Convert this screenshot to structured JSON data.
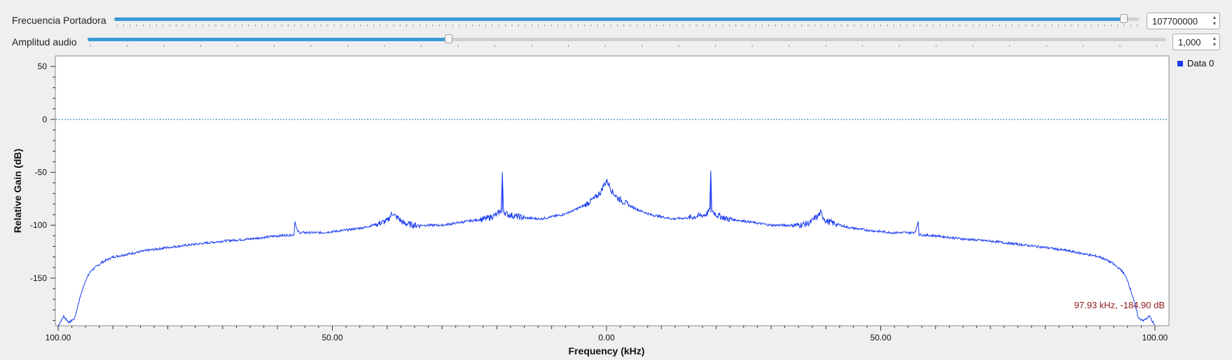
{
  "controls": {
    "carrier": {
      "label": "Frecuencia Portadora",
      "value": "107700000",
      "fraction": 0.985
    },
    "audio": {
      "label": "Amplitud audio",
      "value": "1,000",
      "fraction": 0.335
    }
  },
  "colors": {
    "trace": "#1a3cf0",
    "slider": "#3c9ad6",
    "reference_line": "#0a7fa0",
    "marker_text": "#8b1a1a"
  },
  "chart_data": {
    "type": "line",
    "xlabel": "Frequency (kHz)",
    "ylabel": "Relative Gain (dB)",
    "xlim": [
      -100,
      100
    ],
    "ylim": [
      -195,
      60
    ],
    "x_tick_values": [
      -100,
      -50,
      0,
      50,
      100
    ],
    "x_tick_labels": [
      "100.00",
      "50.00",
      "0.00",
      "50.00",
      "100.00"
    ],
    "y_ticks": [
      50,
      0,
      -50,
      -100,
      -150
    ],
    "reference_line_y": 0,
    "legend": [
      "Data 0"
    ],
    "legend_placement": "top-right",
    "marker_readout": "97.93 kHz, -184.90 dB",
    "series": [
      {
        "name": "Data 0",
        "x": [
          -100,
          -99,
          -98,
          -97,
          -96,
          -95,
          -94,
          -92,
          -90,
          -87,
          -84,
          -80,
          -75,
          -70,
          -65,
          -60,
          -57,
          -56.8,
          -56.6,
          -56.4,
          -56,
          -52,
          -48,
          -44,
          -42,
          -40,
          -39,
          -38.5,
          -38,
          -37.5,
          -37,
          -35,
          -30,
          -25,
          -22,
          -20,
          -19.2,
          -19,
          -18.8,
          -18.5,
          -18,
          -15,
          -12,
          -8,
          -6,
          -4,
          -2,
          -1,
          -0.5,
          0,
          0.5,
          1,
          2,
          4,
          6,
          8,
          12,
          15,
          18,
          18.5,
          18.8,
          19,
          19.2,
          20,
          22,
          25,
          30,
          35,
          37,
          37.5,
          38,
          38.5,
          39,
          40,
          42,
          44,
          48,
          52,
          56,
          56.4,
          56.6,
          56.8,
          57,
          60,
          65,
          70,
          75,
          80,
          84,
          87,
          90,
          92,
          94,
          95,
          96,
          97,
          98,
          99,
          100
        ],
        "y": [
          -195,
          -186,
          -192,
          -188,
          -168,
          -152,
          -143,
          -135,
          -130,
          -127,
          -124,
          -121,
          -118,
          -115,
          -113,
          -110,
          -109,
          -95,
          -102,
          -105,
          -107,
          -107,
          -105,
          -102,
          -99,
          -96,
          -88,
          -92,
          -93,
          -96,
          -98,
          -100,
          -100,
          -96,
          -94,
          -90,
          -86,
          -50,
          -86,
          -88,
          -90,
          -93,
          -94,
          -90,
          -86,
          -81,
          -74,
          -68,
          -62,
          -58,
          -62,
          -68,
          -74,
          -81,
          -86,
          -90,
          -94,
          -93,
          -90,
          -88,
          -86,
          -50,
          -86,
          -90,
          -94,
          -96,
          -100,
          -100,
          -98,
          -96,
          -93,
          -92,
          -88,
          -96,
          -99,
          -102,
          -105,
          -107,
          -107,
          -105,
          -102,
          -95,
          -109,
          -110,
          -113,
          -115,
          -118,
          -121,
          -124,
          -127,
          -130,
          -135,
          -143,
          -152,
          -168,
          -188,
          -190,
          -186,
          -195
        ]
      }
    ]
  }
}
